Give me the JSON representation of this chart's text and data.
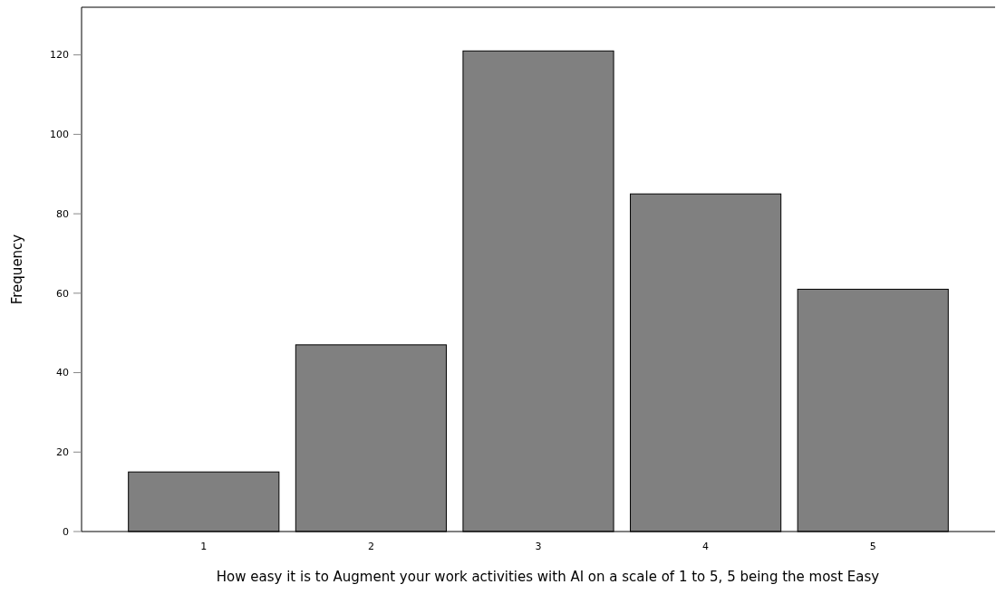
{
  "chart_data": {
    "type": "bar",
    "xlabel": "How easy it is to Augment your work activities with AI on a scale of 1 to 5, 5 being the most Easy",
    "ylabel": "Frequency",
    "categories": [
      "1",
      "2",
      "3",
      "4",
      "5"
    ],
    "values": [
      15,
      47,
      121,
      85,
      61
    ],
    "color": "#808080",
    "ylim": [
      0,
      132
    ],
    "yticks": [
      0,
      20,
      40,
      60,
      80,
      100,
      120
    ],
    "grid": false
  }
}
